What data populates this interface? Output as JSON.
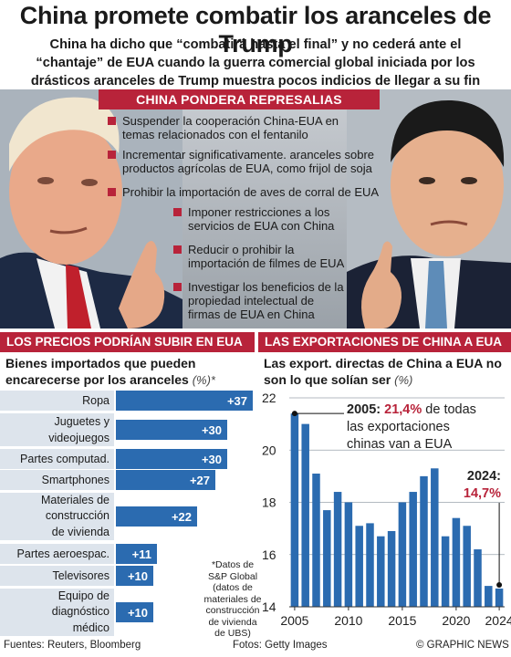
{
  "header": {
    "title": "China promete combatir los aranceles de Trump",
    "subtitle_lines": [
      "China ha dicho que “combatirá hasta el final” y no cederá ante el",
      "“chantaje” de EUA cuando la guerra comercial global iniciada por los",
      "drásticos aranceles de Trump muestra pocos indicios de llegar a su fin"
    ]
  },
  "retaliation": {
    "heading": "CHINA PONDERA REPRESALIAS",
    "items": [
      "Suspender la cooperación China-EUA en temas  relacionados con el fentanilo",
      "Incrementar significativamente. aranceles sobre productos agrícolas de EUA, como frijol de soja",
      "Prohibir la importación de aves de corral de EUA",
      "Imponer restricciones a los servicios de EUA con China",
      "Reducir o prohibir la importación de filmes de EUA",
      "Investigar los beneficios de la propiedad intelectual de firmas de EUA en China"
    ]
  },
  "prices_panel": {
    "heading": "LOS PRECIOS PODRÍAN SUBIR EN EUA",
    "title": "Bienes importados que pueden encarecerse por los aranceles",
    "unit": "(%)*",
    "note": "*Datos de S&P Global (datos de materiales de construcción de vivienda de UBS)"
  },
  "exports_panel": {
    "heading": "LAS EXPORTACIONES DE CHINA A EUA",
    "title": "Las export. directas de China a EUA no son lo que solían ser",
    "unit": "(%)",
    "annotation_2005": {
      "year": "2005:",
      "value": "21,4%",
      "text_1": "de todas",
      "text_2": "las exportaciones",
      "text_3": "chinas van a EUA"
    },
    "annotation_2024": {
      "year": "2024:",
      "value": "14,7%"
    }
  },
  "footer": {
    "sources": "Fuentes: Reuters, Bloomberg",
    "photos": "Fotos: Getty Images",
    "credit": "© GRAPHIC NEWS"
  },
  "colors": {
    "accent_red": "#b8233a",
    "bar_blue": "#2b6bb0",
    "label_bg": "#dde4ec"
  },
  "chart_data": [
    {
      "type": "bar",
      "orientation": "horizontal",
      "categories": [
        "Ropa",
        "Juguetes y videojuegos",
        "Partes computad.",
        "Smartphones",
        "Materiales de construcción de vivienda",
        "Partes aeroespac.",
        "Televisores",
        "Equipo de diagnóstico médico"
      ],
      "values": [
        37,
        30,
        30,
        27,
        22,
        11,
        10,
        10
      ],
      "value_labels": [
        "+37",
        "+30",
        "+30",
        "+27",
        "+22",
        "+11",
        "+10",
        "+10"
      ],
      "title": "Bienes importados que pueden encarecerse por los aranceles",
      "unit": "(%)*"
    },
    {
      "type": "bar",
      "orientation": "vertical",
      "x": [
        2005,
        2006,
        2007,
        2008,
        2009,
        2010,
        2011,
        2012,
        2013,
        2014,
        2015,
        2016,
        2017,
        2018,
        2019,
        2020,
        2021,
        2022,
        2023,
        2024
      ],
      "values": [
        21.4,
        21.0,
        19.1,
        17.7,
        18.4,
        18.0,
        17.1,
        17.2,
        16.7,
        16.9,
        18.0,
        18.4,
        19.0,
        19.3,
        16.7,
        17.4,
        17.1,
        16.2,
        14.8,
        14.7
      ],
      "ylim": [
        14,
        22
      ],
      "yticks": [
        14,
        16,
        18,
        20,
        22
      ],
      "xticks": [
        2005,
        2010,
        2015,
        2020,
        2024
      ],
      "title": "Las export. directas de China a EUA no son lo que solían ser",
      "unit": "(%)",
      "grid": true
    }
  ]
}
